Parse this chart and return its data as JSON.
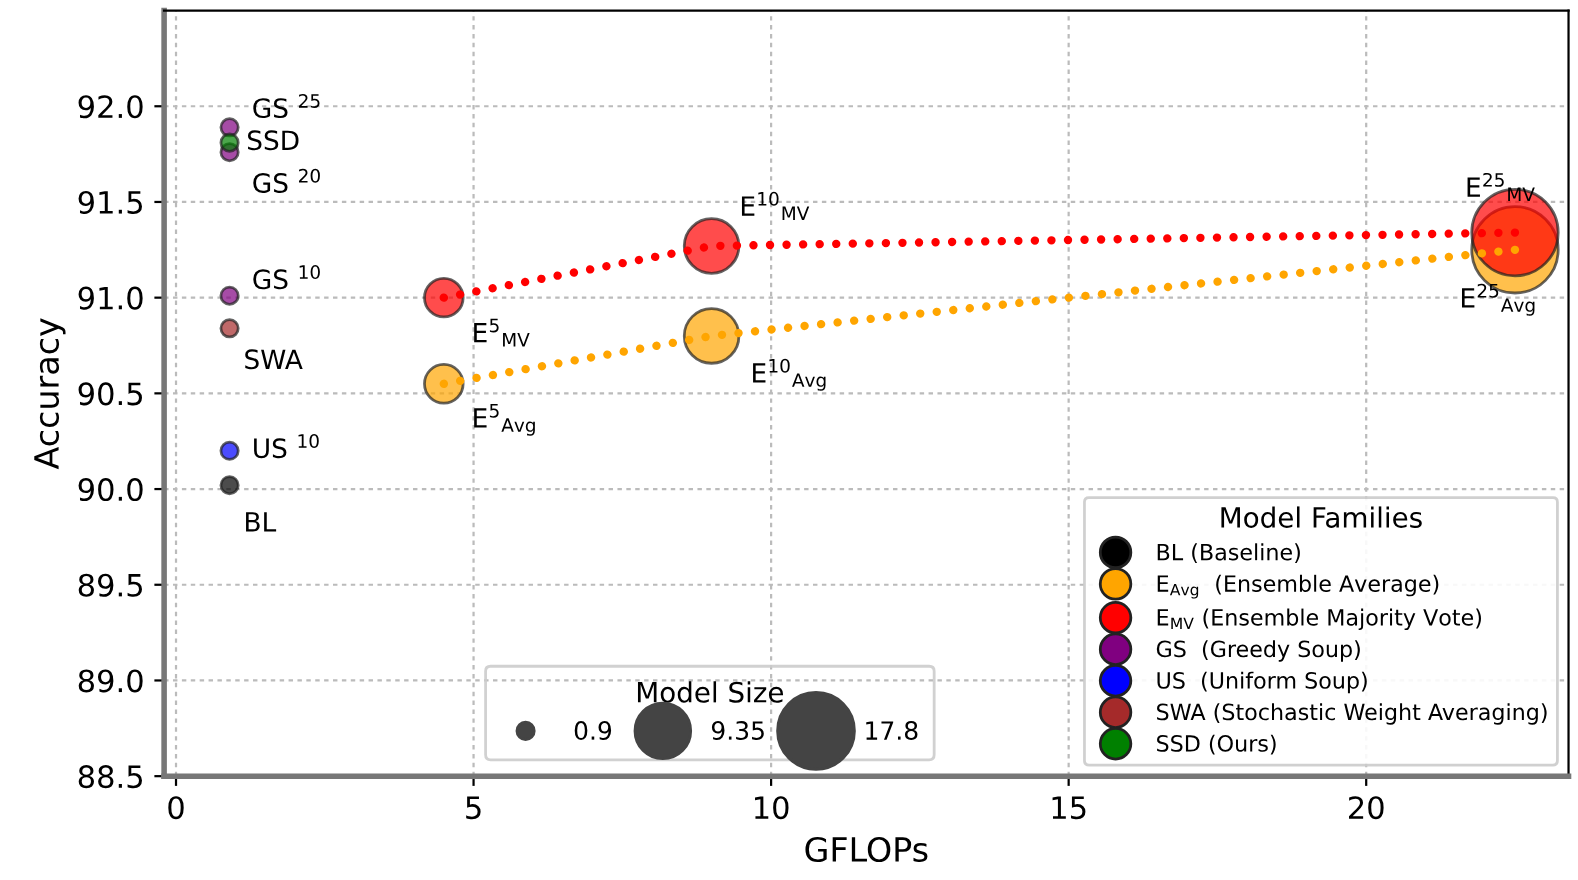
{
  "chart_data": {
    "type": "bubble",
    "xlabel": "GFLOPs",
    "ylabel": "Accuracy",
    "xlim": [
      -0.2,
      23.4
    ],
    "xticks": [
      0,
      5,
      10,
      15,
      20
    ],
    "ylim": [
      88.5,
      92.5
    ],
    "yticks": [
      88.5,
      {
        "value": 89,
        "label": "89.0"
      },
      89.5,
      {
        "value": 90,
        "label": "90.0"
      },
      90.5,
      {
        "value": 91,
        "label": "91.0"
      },
      91.5,
      {
        "value": 92,
        "label": "92.0"
      }
    ],
    "grid": true,
    "legend": "bottom right",
    "legend_title": "Model Families",
    "marker": "circle",
    "size_legend": [
      0.9,
      9.35,
      17.8
    ],
    "series": [
      {
        "name": "BL (Baseline)",
        "color": "#000000",
        "x": [
          0.9
        ],
        "values": [
          90.02
        ],
        "sizes": [
          0.9
        ]
      },
      {
        "type": "line",
        "color": "#ffa500",
        "x": [
          4.5,
          9.0,
          22.5
        ],
        "values": [
          90.55,
          90.8,
          91.25
        ],
        "line_style": "dotted",
        "marker": "none"
      },
      {
        "type": "line",
        "color": "#ff0000",
        "x": [
          4.5,
          9.0,
          22.5
        ],
        "values": [
          91.0,
          91.27,
          91.34
        ],
        "line_style": "dotted",
        "marker": "none"
      },
      {
        "name": "E$_{Avg}$  (Ensemble Average)",
        "color": "#ffa500",
        "x": [
          4.5,
          9.0,
          22.5
        ],
        "values": [
          90.55,
          90.8,
          91.25
        ],
        "sizes": [
          4.5,
          9.0,
          22.5
        ]
      },
      {
        "name": "E$_{MV}$ (Ensemble Majority Vote)",
        "color": "#ff0000",
        "x": [
          4.5,
          9.0,
          22.5
        ],
        "values": [
          91.0,
          91.27,
          91.34
        ],
        "sizes": [
          4.5,
          9.0,
          22.5
        ]
      },
      {
        "name": "GS  (Greedy Soup)",
        "color": "#800080",
        "x": [
          0.9,
          0.9,
          0.9
        ],
        "values": [
          91.01,
          91.76,
          91.89
        ],
        "sizes": [
          0.9,
          0.9,
          0.9
        ]
      },
      {
        "name": "US  (Uniform Soup)",
        "color": "#0000ff",
        "x": [
          0.9
        ],
        "values": [
          90.2
        ],
        "sizes": [
          0.9
        ]
      },
      {
        "name": "SWA (Stochastic Weight Averaging)",
        "color": "#a52a2a",
        "x": [
          0.9
        ],
        "values": [
          90.84
        ],
        "sizes": [
          0.9
        ]
      },
      {
        "name": "SSD (Ours)",
        "color": "#008000",
        "x": [
          0.9
        ],
        "values": [
          91.81
        ],
        "sizes": [
          0.9
        ]
      }
    ],
    "annotations": [
      "Model Size",
      {
        "text": "BL",
        "x": 0.9,
        "y": 90.02
      },
      {
        "text": "US $^{10}$",
        "x": 0.9,
        "y": 90.2
      },
      {
        "text": "SWA",
        "x": 0.9,
        "y": 90.84
      },
      {
        "text": "GS $^{10}$",
        "x": 0.9,
        "y": 91.01
      },
      {
        "text": "GS $^{20}$",
        "x": 0.9,
        "y": 91.76
      },
      {
        "text": "SSD",
        "x": 0.9,
        "y": 91.81
      },
      {
        "text": "GS $^{25}$",
        "x": 0.9,
        "y": 91.89
      },
      {
        "text": "E$^{5}$$_{MV}$",
        "x": 4.5,
        "y": 91.0
      },
      {
        "text": "E$^{5}$$_{Avg}$",
        "x": 4.5,
        "y": 90.55
      },
      {
        "text": "E$^{10}$$_{MV}$",
        "x": 9.0,
        "y": 91.27
      },
      {
        "text": "E$^{10}$$_{Avg}$",
        "x": 9.0,
        "y": 90.8
      },
      {
        "text": "E$^{25}$$_{MV}$",
        "x": 22.5,
        "y": 91.34
      },
      {
        "text": "E$^{25}$$_{Avg}$",
        "x": 22.5,
        "y": 91.25
      }
    ]
  }
}
